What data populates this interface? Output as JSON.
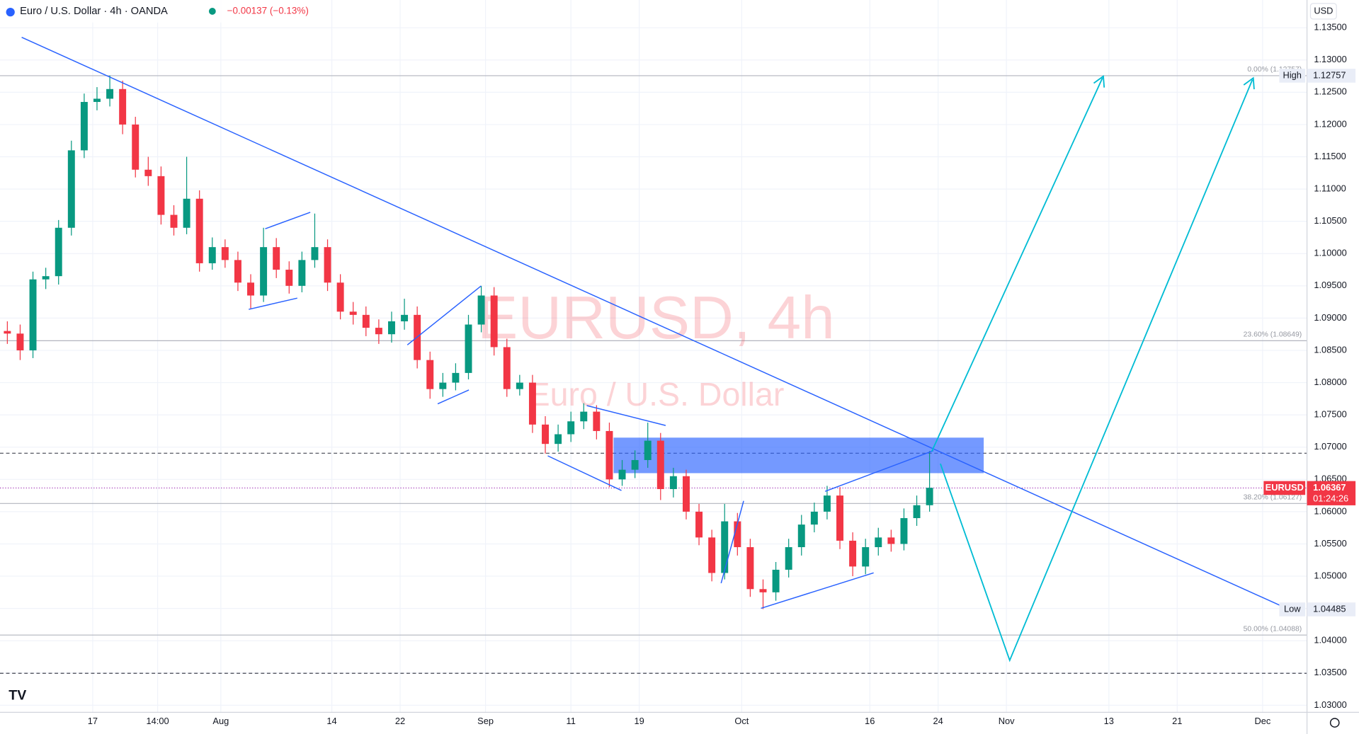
{
  "header": {
    "symbol": "Euro / U.S. Dollar · 4h · OANDA",
    "change": "−0.00137 (−0.13%)"
  },
  "chart_data": {
    "type": "candlestick",
    "watermark": "EURUSD, 4h",
    "watermark_subtitle": "Euro / U.S. Dollar",
    "currency": "USD",
    "up_color": "#089981",
    "down_color": "#f23645",
    "grid": true,
    "x": [
      6,
      7.5,
      9,
      10.5,
      12,
      13.5,
      15,
      16.5,
      18,
      19.5,
      21,
      22.5,
      24,
      25.5,
      27,
      28.5,
      30,
      31.5,
      33,
      34.5,
      36,
      37.5,
      39,
      40.5,
      42,
      43.5,
      45,
      46.5,
      48,
      49.5,
      51,
      52.5,
      54,
      55.5,
      57,
      58.5,
      60,
      61.5,
      63,
      64.5,
      66,
      67.5,
      69,
      70.5,
      72,
      73.5,
      75,
      76.5,
      78,
      79.5,
      81,
      82.5,
      84,
      85.5,
      87,
      88.5,
      90,
      91.5,
      93,
      94.5,
      96,
      97.5,
      99,
      100.5,
      102,
      103.5,
      105,
      106.5,
      108,
      109.5,
      111,
      112.5,
      114
    ],
    "open": [
      1.088,
      1.0876,
      1.085,
      1.096,
      1.0965,
      1.104,
      1.116,
      1.1235,
      1.124,
      1.1255,
      1.12,
      1.113,
      1.112,
      1.106,
      1.104,
      1.1085,
      1.0985,
      1.101,
      1.099,
      1.0955,
      1.0935,
      1.101,
      1.0975,
      1.095,
      1.099,
      1.101,
      1.0955,
      1.091,
      1.0905,
      1.0885,
      1.0875,
      1.0895,
      1.0905,
      1.0835,
      1.079,
      1.08,
      1.0815,
      1.089,
      1.0935,
      1.0855,
      1.079,
      1.08,
      1.0735,
      1.0705,
      1.072,
      1.074,
      1.0755,
      1.0725,
      1.065,
      1.0665,
      1.068,
      1.071,
      1.0635,
      1.0655,
      1.06,
      1.056,
      1.0505,
      1.0585,
      1.0545,
      1.048,
      1.0475,
      1.051,
      1.0545,
      1.058,
      1.06,
      1.0625,
      1.0555,
      1.0515,
      1.0545,
      1.056,
      1.055,
      1.059,
      1.061
    ],
    "high": [
      1.0895,
      1.089,
      1.0972,
      1.0978,
      1.1052,
      1.1175,
      1.1248,
      1.1258,
      1.1276,
      1.1268,
      1.1212,
      1.115,
      1.1135,
      1.1075,
      1.115,
      1.1098,
      1.1025,
      1.1022,
      1.1003,
      1.0968,
      1.104,
      1.1024,
      1.0988,
      1.1003,
      1.1062,
      1.1022,
      1.0968,
      1.0925,
      1.0918,
      1.0898,
      1.091,
      1.093,
      1.0918,
      1.0848,
      1.0815,
      1.083,
      1.0905,
      1.095,
      1.0948,
      1.0868,
      1.0812,
      1.0812,
      1.0748,
      1.0735,
      1.0755,
      1.0768,
      1.0765,
      1.0738,
      1.068,
      1.0695,
      1.0738,
      1.0722,
      1.0668,
      1.0665,
      1.0612,
      1.0572,
      1.0612,
      1.0598,
      1.0558,
      1.0495,
      1.0522,
      1.0558,
      1.0595,
      1.0614,
      1.064,
      1.0638,
      1.0568,
      1.0558,
      1.0575,
      1.0572,
      1.0605,
      1.0625,
      1.0694
    ],
    "low": [
      1.086,
      1.0835,
      1.0838,
      1.0945,
      1.0952,
      1.1028,
      1.1148,
      1.1222,
      1.1228,
      1.1185,
      1.1118,
      1.1105,
      1.1045,
      1.1028,
      1.103,
      1.0972,
      1.0975,
      1.0978,
      1.0942,
      1.0915,
      1.0925,
      1.0962,
      1.0938,
      1.094,
      1.0978,
      1.0942,
      1.0898,
      1.089,
      1.0872,
      1.086,
      1.0862,
      1.0882,
      1.0822,
      1.0775,
      1.0778,
      1.0788,
      1.0805,
      1.0878,
      1.0842,
      1.0778,
      1.078,
      1.0722,
      1.069,
      1.0693,
      1.0708,
      1.0728,
      1.0712,
      1.0638,
      1.064,
      1.0652,
      1.0668,
      1.0618,
      1.0622,
      1.0588,
      1.0548,
      1.0492,
      1.0495,
      1.0532,
      1.0468,
      1.0449,
      1.0462,
      1.0498,
      1.0532,
      1.0568,
      1.0588,
      1.0542,
      1.05,
      1.0503,
      1.0532,
      1.0538,
      1.054,
      1.0578,
      1.06
    ],
    "close": [
      1.0876,
      1.085,
      1.096,
      1.0965,
      1.104,
      1.116,
      1.1235,
      1.124,
      1.1255,
      1.12,
      1.113,
      1.112,
      1.106,
      1.104,
      1.1085,
      1.0985,
      1.101,
      1.099,
      1.0955,
      1.0935,
      1.101,
      1.0975,
      1.095,
      1.099,
      1.101,
      1.0955,
      1.091,
      1.0905,
      1.0885,
      1.0875,
      1.0895,
      1.0905,
      1.0835,
      1.079,
      1.08,
      1.0815,
      1.089,
      1.0935,
      1.0855,
      1.079,
      1.08,
      1.0735,
      1.0705,
      1.072,
      1.074,
      1.0755,
      1.0725,
      1.065,
      1.0665,
      1.068,
      1.071,
      1.0635,
      1.0655,
      1.06,
      1.056,
      1.0505,
      1.0585,
      1.0545,
      1.048,
      1.0475,
      1.051,
      1.0545,
      1.058,
      1.06,
      1.0625,
      1.0555,
      1.0515,
      1.0545,
      1.056,
      1.055,
      1.059,
      1.061,
      1.0637
    ],
    "xlim": [
      5.14,
      158.2
    ],
    "ylim": [
      1.0289,
      1.1393
    ],
    "xticks": [
      {
        "value": 16,
        "label": "17"
      },
      {
        "value": 23.6,
        "label": "14:00"
      },
      {
        "value": 31,
        "label": "Aug"
      },
      {
        "value": 44,
        "label": "14"
      },
      {
        "value": 52,
        "label": "22"
      },
      {
        "value": 62,
        "label": "Sep"
      },
      {
        "value": 72,
        "label": "11"
      },
      {
        "value": 80,
        "label": "19"
      },
      {
        "value": 92,
        "label": "Oct"
      },
      {
        "value": 107,
        "label": "16"
      },
      {
        "value": 115,
        "label": "24"
      },
      {
        "value": 123,
        "label": "Nov"
      },
      {
        "value": 135,
        "label": "13"
      },
      {
        "value": 143,
        "label": "21"
      },
      {
        "value": 153,
        "label": "Dec"
      }
    ],
    "yticks": [
      {
        "value": 1.03,
        "label": "1.03000"
      },
      {
        "value": 1.035,
        "label": "1.03500"
      },
      {
        "value": 1.04,
        "label": "1.04000"
      },
      {
        "value": 1.045,
        "label": "1.04500"
      },
      {
        "value": 1.05,
        "label": "1.05000"
      },
      {
        "value": 1.055,
        "label": "1.05500"
      },
      {
        "value": 1.06,
        "label": "1.06000"
      },
      {
        "value": 1.065,
        "label": "1.06500"
      },
      {
        "value": 1.07,
        "label": "1.07000"
      },
      {
        "value": 1.075,
        "label": "1.07500"
      },
      {
        "value": 1.08,
        "label": "1.08000"
      },
      {
        "value": 1.085,
        "label": "1.08500"
      },
      {
        "value": 1.09,
        "label": "1.09000"
      },
      {
        "value": 1.095,
        "label": "1.09500"
      },
      {
        "value": 1.1,
        "label": "1.10000"
      },
      {
        "value": 1.105,
        "label": "1.10500"
      },
      {
        "value": 1.11,
        "label": "1.11000"
      },
      {
        "value": 1.115,
        "label": "1.11500"
      },
      {
        "value": 1.12,
        "label": "1.12000"
      },
      {
        "value": 1.125,
        "label": "1.12500"
      },
      {
        "value": 1.13,
        "label": "1.13000"
      },
      {
        "value": 1.135,
        "label": "1.13500"
      }
    ],
    "fib_levels": [
      {
        "label": "0.00% (1.12757)",
        "value": 1.12757
      },
      {
        "label": "23.60% (1.08649)",
        "value": 1.08649
      },
      {
        "label": "38.20% (1.06127)",
        "value": 1.06127
      },
      {
        "label": "50.00% (1.04088)",
        "value": 1.04088
      }
    ],
    "high_marker": {
      "label": "High",
      "value": 1.12757
    },
    "low_marker": {
      "label": "Low",
      "value": 1.04485
    },
    "last_price": {
      "label": "EURUSD",
      "value": 1.06367,
      "countdown": "01:24:26"
    }
  }
}
